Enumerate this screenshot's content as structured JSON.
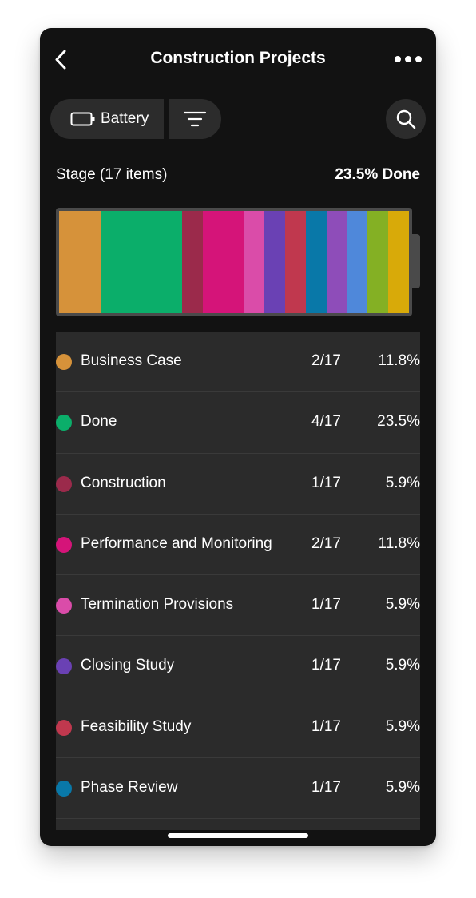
{
  "nav": {
    "title": "Construction Projects",
    "back_icon": "chevron-left-icon",
    "more_icon": "more-horizontal-icon"
  },
  "toolbar": {
    "battery_label": "Battery",
    "battery_icon": "battery-icon",
    "filter_icon": "filter-icon",
    "search_icon": "search-icon"
  },
  "summary": {
    "stage_label": "Stage (17 items)",
    "done_label": "23.5% Done"
  },
  "stages": [
    {
      "name": "Business Case",
      "count": "2/17",
      "pct": "11.8%",
      "color": "#D6923A",
      "share": 11.8
    },
    {
      "name": "Done",
      "count": "4/17",
      "pct": "23.5%",
      "color": "#0BAE6A",
      "share": 23.5
    },
    {
      "name": "Construction",
      "count": "1/17",
      "pct": "5.9%",
      "color": "#9B2A4B",
      "share": 5.9
    },
    {
      "name": "Performance and Monitoring",
      "count": "2/17",
      "pct": "11.8%",
      "color": "#D51479",
      "share": 11.8
    },
    {
      "name": "Termination Provisions",
      "count": "1/17",
      "pct": "5.9%",
      "color": "#DA4CA9",
      "share": 5.9
    },
    {
      "name": "Closing Study",
      "count": "1/17",
      "pct": "5.9%",
      "color": "#6A41B4",
      "share": 5.9
    },
    {
      "name": "Feasibility Study",
      "count": "1/17",
      "pct": "5.9%",
      "color": "#C0384E",
      "share": 5.9
    },
    {
      "name": "Phase Review",
      "count": "1/17",
      "pct": "5.9%",
      "color": "#0978A8",
      "share": 5.9
    }
  ],
  "extra_segments": [
    {
      "color": "#8E4DB9",
      "share": 5.9
    },
    {
      "color": "#4F88DA",
      "share": 5.9
    },
    {
      "color": "#84B024",
      "share": 5.9
    },
    {
      "color": "#D8AA09",
      "share": 5.9
    }
  ]
}
